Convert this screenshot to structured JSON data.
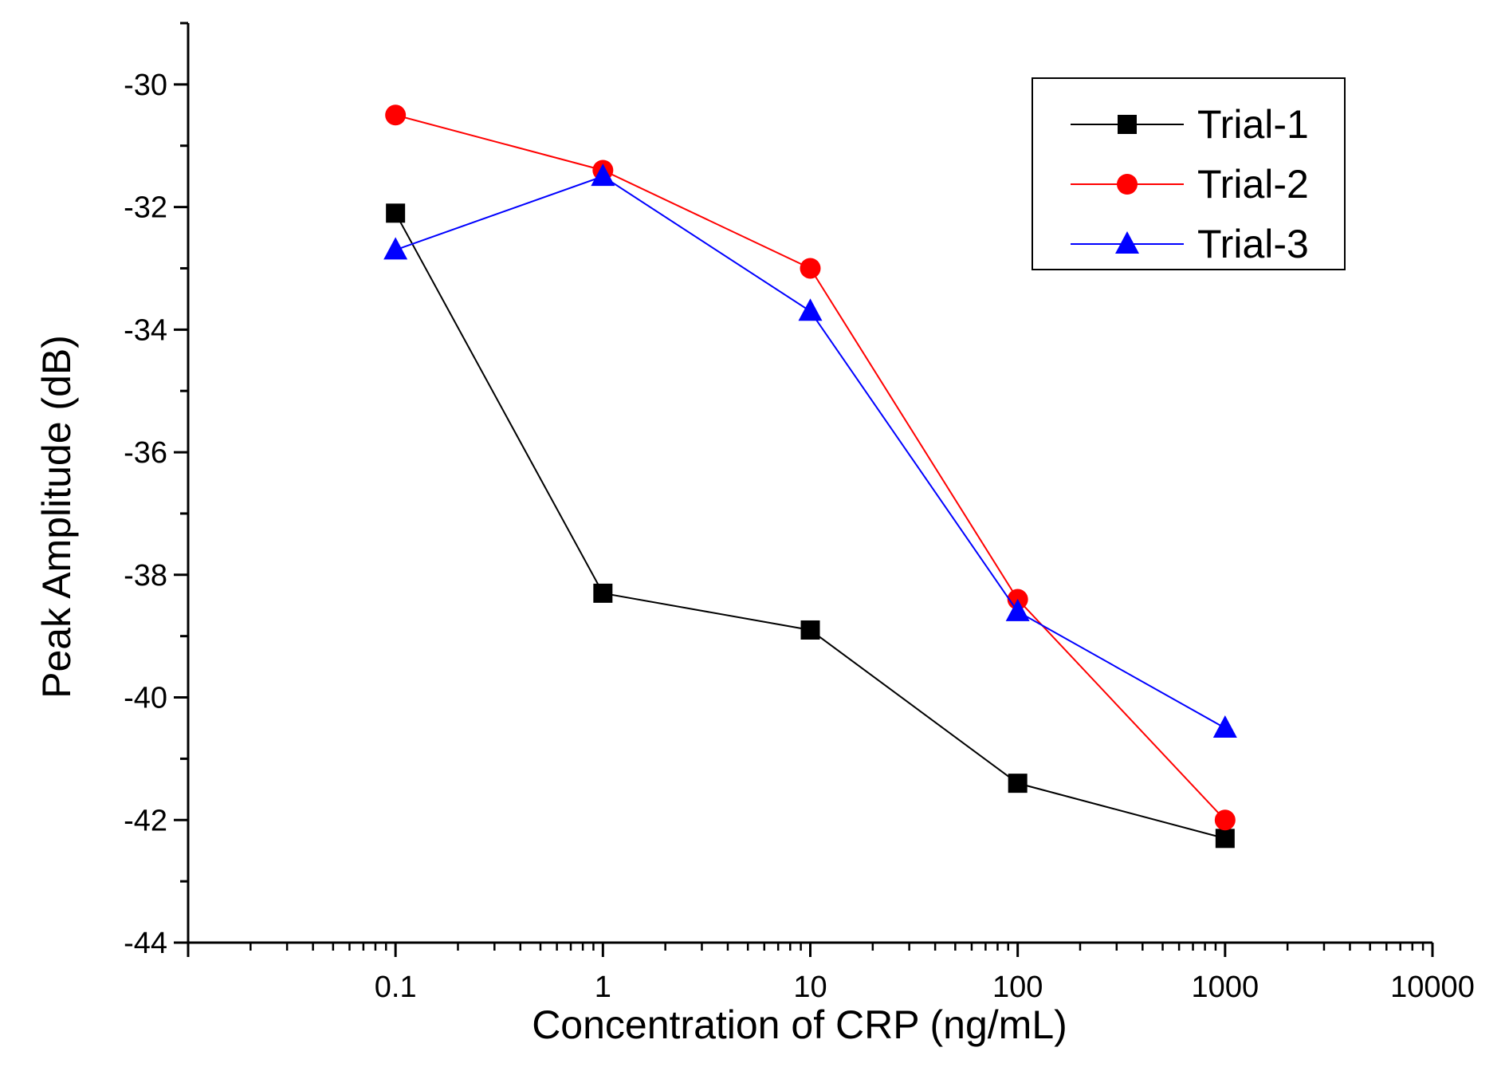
{
  "chart_data": {
    "type": "line",
    "title": "",
    "xlabel": "Concentration of CRP (ng/mL)",
    "ylabel": "Peak Amplitude (dB)",
    "xscale": "log",
    "xlim": [
      0.01,
      10000
    ],
    "ylim": [
      -44,
      -29
    ],
    "x": [
      0.1,
      1,
      10,
      100,
      1000
    ],
    "x_tick_labels": [
      "0.1",
      "1",
      "10",
      "100",
      "1000",
      "10000"
    ],
    "x_tick_values": [
      0.1,
      1,
      10,
      100,
      1000,
      10000
    ],
    "y_tick_labels": [
      "-30",
      "-32",
      "-34",
      "-36",
      "-38",
      "-40",
      "-42",
      "-44"
    ],
    "y_tick_values": [
      -30,
      -32,
      -34,
      -36,
      -38,
      -40,
      -42,
      -44
    ],
    "legend_position": "top-right",
    "series": [
      {
        "name": "Trial-1",
        "color": "#000000",
        "marker": "square",
        "values": [
          -32.1,
          -38.3,
          -38.9,
          -41.4,
          -42.3
        ]
      },
      {
        "name": "Trial-2",
        "color": "#ff0000",
        "marker": "circle",
        "values": [
          -30.5,
          -31.4,
          -33.0,
          -38.4,
          -42.0
        ]
      },
      {
        "name": "Trial-3",
        "color": "#0000ff",
        "marker": "triangle",
        "values": [
          -32.7,
          -31.5,
          -33.7,
          -38.6,
          -40.5
        ]
      }
    ]
  }
}
